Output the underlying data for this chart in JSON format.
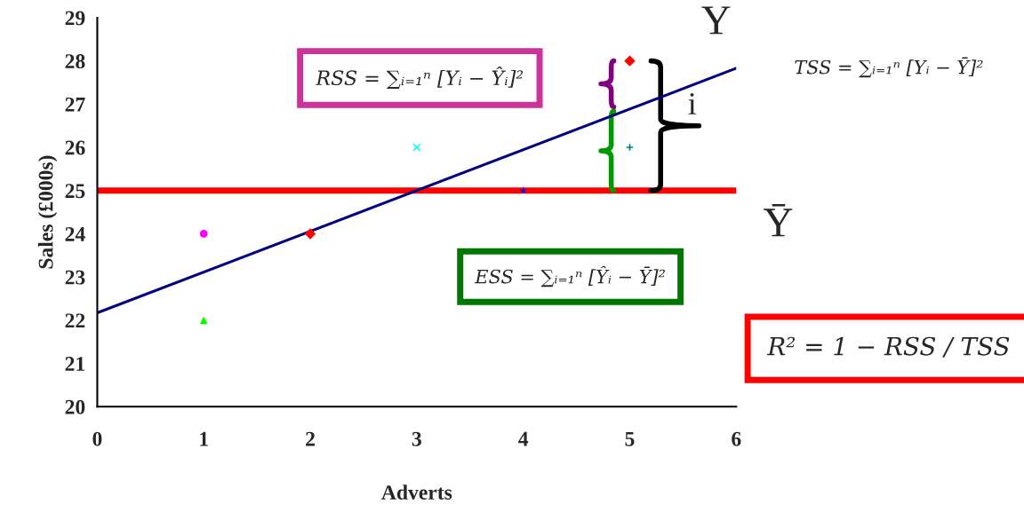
{
  "chart_data": {
    "type": "scatter",
    "xlabel": "Adverts",
    "ylabel": "Sales (£000s)",
    "xlim": [
      0,
      6
    ],
    "ylim": [
      20,
      29
    ],
    "xticks": [
      0,
      1,
      2,
      3,
      4,
      5,
      6
    ],
    "yticks": [
      20,
      21,
      22,
      23,
      24,
      25,
      26,
      27,
      28,
      29
    ],
    "grid": false,
    "legend": false,
    "series": [
      {
        "x": [
          1
        ],
        "values": [
          24
        ],
        "color": "#ff00ff",
        "marker": "circle"
      },
      {
        "x": [
          1
        ],
        "values": [
          22
        ],
        "color": "#00ff00",
        "marker": "triangle"
      },
      {
        "x": [
          2
        ],
        "values": [
          24
        ],
        "color": "#ff0000",
        "marker": "diamond"
      },
      {
        "x": [
          3
        ],
        "values": [
          26
        ],
        "color": "#00ffff",
        "marker": "cross"
      },
      {
        "x": [
          4
        ],
        "values": [
          25
        ],
        "color": "#0000ff",
        "marker": "star"
      },
      {
        "x": [
          5
        ],
        "values": [
          28
        ],
        "color": "#ff0000",
        "marker": "diamond"
      },
      {
        "x": [
          5
        ],
        "values": [
          26
        ],
        "color": "#008080",
        "marker": "plus"
      },
      {
        "type": "line",
        "x": [
          0,
          6
        ],
        "values": [
          22.17,
          27.83
        ],
        "color": "#000080",
        "marker": "none",
        "line_style": "solid"
      }
    ],
    "ref_lines": [
      {
        "axis": "y",
        "value": 25,
        "color": "#ff0000"
      }
    ],
    "annotations": [
      "RSS = ∑ᵢ₌₁ⁿ [Yᵢ − Ŷᵢ]²",
      "ESS = ∑ᵢ₌₁ⁿ [Ŷᵢ − Ȳ]²",
      "TSS = ∑ᵢ₌₁ⁿ [Yᵢ − Ȳ]²",
      "R² = 1 − RSS / TSS",
      {
        "text": "Y",
        "x": 5,
        "y": 28
      },
      "i",
      "Ȳ"
    ]
  }
}
